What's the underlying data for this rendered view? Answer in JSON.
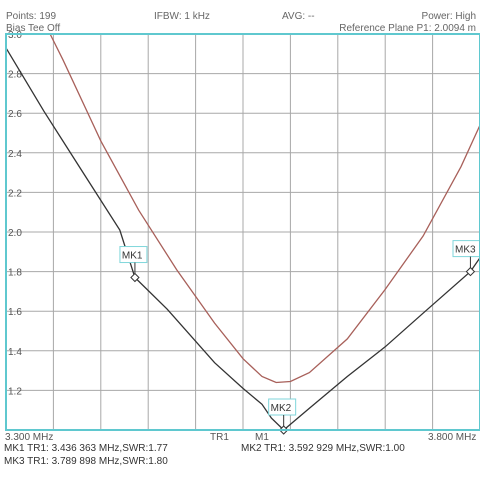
{
  "header": {
    "points": "Points: 199",
    "ifbw": "IFBW: 1 kHz",
    "avg": "AVG: --",
    "power": "Power: High",
    "bias_tee": "Bias Tee Off",
    "ref_plane": "Reference Plane P1: 2.0094 m"
  },
  "axis": {
    "x_start_label": "3.300 MHz",
    "x_end_label": "3.800 MHz",
    "tr_label": "TR1",
    "m_label": "M1"
  },
  "colors": {
    "border": "#5fc8cf",
    "grid": "#a8a8a8",
    "trace_black": "#333333",
    "trace_red": "#a8605a",
    "marker_box": "#7fd6db"
  },
  "chart_data": {
    "type": "line",
    "xlim": [
      3.3,
      3.8
    ],
    "ylim": [
      1.0,
      3.0
    ],
    "yticks": [
      "3.0",
      "2.8",
      "2.6",
      "2.4",
      "2.2",
      "2.0",
      "1.8",
      "1.6",
      "1.4",
      "1.2"
    ],
    "series": [
      {
        "color": "#333333",
        "points": [
          [
            3.3,
            2.93
          ],
          [
            3.34,
            2.61
          ],
          [
            3.38,
            2.31
          ],
          [
            3.42,
            2.01
          ],
          [
            3.436,
            1.77
          ],
          [
            3.47,
            1.61
          ],
          [
            3.52,
            1.34
          ],
          [
            3.55,
            1.21
          ],
          [
            3.57,
            1.13
          ],
          [
            3.58,
            1.06
          ],
          [
            3.5929,
            1.0
          ],
          [
            3.62,
            1.11
          ],
          [
            3.66,
            1.27
          ],
          [
            3.7,
            1.42
          ],
          [
            3.74,
            1.59
          ],
          [
            3.7899,
            1.8
          ],
          [
            3.8,
            1.87
          ]
        ]
      },
      {
        "color": "#a8605a",
        "points": [
          [
            3.3465,
            3.0
          ],
          [
            3.36,
            2.87
          ],
          [
            3.4,
            2.46
          ],
          [
            3.44,
            2.11
          ],
          [
            3.48,
            1.81
          ],
          [
            3.52,
            1.54
          ],
          [
            3.55,
            1.36
          ],
          [
            3.57,
            1.27
          ],
          [
            3.585,
            1.24
          ],
          [
            3.6,
            1.245
          ],
          [
            3.62,
            1.29
          ],
          [
            3.66,
            1.46
          ],
          [
            3.7,
            1.71
          ],
          [
            3.74,
            1.98
          ],
          [
            3.78,
            2.33
          ],
          [
            3.8,
            2.54
          ]
        ]
      }
    ],
    "markers": [
      {
        "name": "MK1",
        "freq": 3.436,
        "swr": 1.77
      },
      {
        "name": "MK2",
        "freq": 3.5929,
        "swr": 1.0
      },
      {
        "name": "MK3",
        "freq": 3.7899,
        "swr": 1.8
      }
    ]
  },
  "readouts": {
    "mk1": "MK1 TR1:  3.436 363 MHz,SWR:1.77",
    "mk2": "MK2 TR1:  3.592 929 MHz,SWR:1.00",
    "mk3": "MK3 TR1:  3.789 898 MHz,SWR:1.80"
  }
}
